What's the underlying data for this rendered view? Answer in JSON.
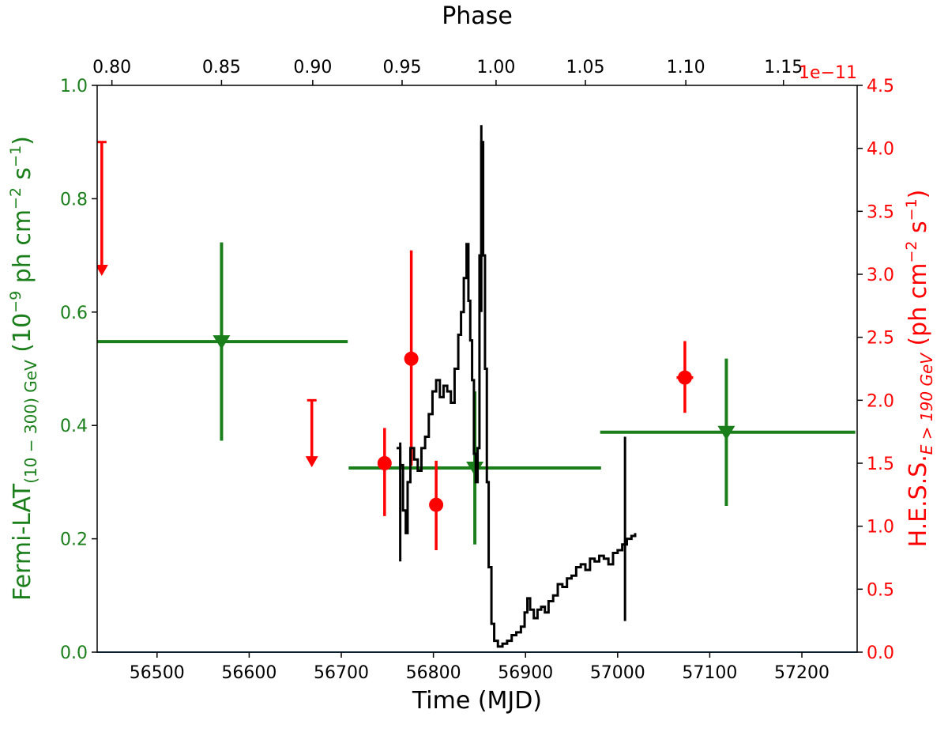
{
  "chart_data": {
    "type": "scatter",
    "x_axis": {
      "label": "Time (MJD)",
      "range": [
        56435,
        57260
      ],
      "ticks": [
        56500,
        56600,
        56700,
        56800,
        56900,
        57000,
        57100,
        57200
      ],
      "tick_labels": [
        "56500",
        "56600",
        "56700",
        "56800",
        "56900",
        "57000",
        "57100",
        "57200"
      ]
    },
    "x_top_axis": {
      "label": "Phase",
      "ticks": [
        0.8,
        0.85,
        0.9,
        0.95,
        1.0,
        1.05,
        1.1,
        1.15
      ],
      "tick_labels": [
        "0.80",
        "0.85",
        "0.90",
        "0.95",
        "1.00",
        "1.05",
        "1.10",
        "1.15"
      ],
      "tick_mjd": [
        56451,
        56570,
        56669,
        56766,
        56868,
        56965,
        57074,
        57180
      ]
    },
    "y_left_axis": {
      "label_main": "Fermi-LAT",
      "label_sub": "(10 − 300) GeV",
      "label_tail": "(10",
      "label_exp1": "−9",
      "label_mid": " ph cm",
      "label_exp2": "−2",
      "label_mid2": " s",
      "label_exp3": "−1",
      "label_end": ")",
      "range": [
        0,
        1.0
      ],
      "ticks": [
        0.0,
        0.2,
        0.4,
        0.6,
        0.8,
        1.0
      ],
      "tick_labels": [
        "0.0",
        "0.2",
        "0.4",
        "0.6",
        "0.8",
        "1.0"
      ],
      "color": "#1a7f1a"
    },
    "y_right_axis": {
      "label_main": "H.E.S.S.",
      "label_sub": "E > 190 GeV",
      "label_tail": " (ph cm",
      "label_exp2": "−2",
      "label_mid2": " s",
      "label_exp3": "−1",
      "label_end": ")",
      "offset_text": "1e−11",
      "range": [
        0,
        4.5
      ],
      "ticks": [
        0.0,
        0.5,
        1.0,
        1.5,
        2.0,
        2.5,
        3.0,
        3.5,
        4.0,
        4.5
      ],
      "tick_labels": [
        "0.0",
        "0.5",
        "1.0",
        "1.5",
        "2.0",
        "2.5",
        "3.0",
        "3.5",
        "4.0",
        "4.5"
      ],
      "color": "#ff0000"
    },
    "series": [
      {
        "kind": "fermi_upper_limits",
        "color": "#1a7f1a",
        "points": [
          {
            "x": 56570,
            "y": 0.548,
            "xerr": [
              135,
              137
            ],
            "yerr": [
              0.175,
              0.175
            ]
          },
          {
            "x": 56845,
            "y": 0.325,
            "xerr": [
              137,
              137
            ],
            "yerr": [
              0.135,
              0.135
            ]
          },
          {
            "x": 57118,
            "y": 0.388,
            "xerr": [
              137,
              140
            ],
            "yerr": [
              0.13,
              0.13
            ]
          }
        ]
      },
      {
        "kind": "hess_points",
        "color": "#ff0000",
        "points": [
          {
            "x": 56747,
            "y": 1.5,
            "xerr": [
              6,
              6
            ],
            "yerr": [
              0.42,
              0.28
            ]
          },
          {
            "x": 56776,
            "y": 2.33,
            "xerr": [
              0,
              0
            ],
            "yerr": [
              0.85,
              0.86
            ]
          },
          {
            "x": 56803,
            "y": 1.17,
            "xerr": [
              7,
              7
            ],
            "yerr": [
              0.36,
              0.35
            ]
          },
          {
            "x": 57073,
            "y": 2.18,
            "xerr": [
              9,
              9
            ],
            "yerr": [
              0.28,
              0.29
            ]
          }
        ]
      },
      {
        "kind": "hess_upper_limits",
        "color": "#ff0000",
        "points": [
          {
            "x": 56440,
            "y_top": 4.05,
            "y_arrow": 3.0
          },
          {
            "x": 56668,
            "y_top": 2.0,
            "y_arrow": 1.48
          }
        ]
      },
      {
        "kind": "xray_lightcurve",
        "color": "#000000",
        "points": [
          [
            56760,
            0.36
          ],
          [
            56764,
            0.33
          ],
          [
            56767,
            0.25
          ],
          [
            56770,
            0.21
          ],
          [
            56772,
            0.3
          ],
          [
            56775,
            0.36
          ],
          [
            56779,
            0.34
          ],
          [
            56783,
            0.32
          ],
          [
            56787,
            0.36
          ],
          [
            56791,
            0.38
          ],
          [
            56795,
            0.42
          ],
          [
            56799,
            0.46
          ],
          [
            56803,
            0.48
          ],
          [
            56807,
            0.45
          ],
          [
            56811,
            0.47
          ],
          [
            56815,
            0.46
          ],
          [
            56819,
            0.44
          ],
          [
            56823,
            0.5
          ],
          [
            56827,
            0.56
          ],
          [
            56830,
            0.6
          ],
          [
            56833,
            0.66
          ],
          [
            56836,
            0.72
          ],
          [
            56838,
            0.62
          ],
          [
            56840,
            0.55
          ],
          [
            56842,
            0.48
          ],
          [
            56844,
            0.35
          ],
          [
            56846,
            0.3
          ],
          [
            56848,
            0.36
          ],
          [
            56850,
            0.7
          ],
          [
            56852,
            0.9
          ],
          [
            56854,
            0.7
          ],
          [
            56856,
            0.5
          ],
          [
            56858,
            0.3
          ],
          [
            56860,
            0.15
          ],
          [
            56863,
            0.05
          ],
          [
            56866,
            0.02
          ],
          [
            56870,
            0.01
          ],
          [
            56875,
            0.015
          ],
          [
            56880,
            0.02
          ],
          [
            56885,
            0.03
          ],
          [
            56890,
            0.035
          ],
          [
            56895,
            0.045
          ],
          [
            56899,
            0.07
          ],
          [
            56902,
            0.095
          ],
          [
            56905,
            0.075
          ],
          [
            56909,
            0.06
          ],
          [
            56913,
            0.075
          ],
          [
            56917,
            0.08
          ],
          [
            56921,
            0.07
          ],
          [
            56925,
            0.09
          ],
          [
            56930,
            0.1
          ],
          [
            56935,
            0.12
          ],
          [
            56940,
            0.115
          ],
          [
            56945,
            0.13
          ],
          [
            56950,
            0.135
          ],
          [
            56955,
            0.15
          ],
          [
            56960,
            0.155
          ],
          [
            56965,
            0.145
          ],
          [
            56970,
            0.165
          ],
          [
            56975,
            0.16
          ],
          [
            56980,
            0.17
          ],
          [
            56985,
            0.165
          ],
          [
            56990,
            0.155
          ],
          [
            56995,
            0.175
          ],
          [
            57000,
            0.18
          ],
          [
            57005,
            0.19
          ],
          [
            57010,
            0.2
          ],
          [
            57015,
            0.205
          ],
          [
            57019,
            0.21
          ]
        ],
        "error_bars": [
          {
            "x": 56764,
            "lo": 0.16,
            "hi": 0.37
          },
          {
            "x": 56852,
            "lo": 0.6,
            "hi": 0.93
          },
          {
            "x": 57008,
            "lo": 0.055,
            "hi": 0.38
          }
        ]
      }
    ],
    "baseline": {
      "y": 0.0,
      "color": "#1f77b4"
    }
  }
}
